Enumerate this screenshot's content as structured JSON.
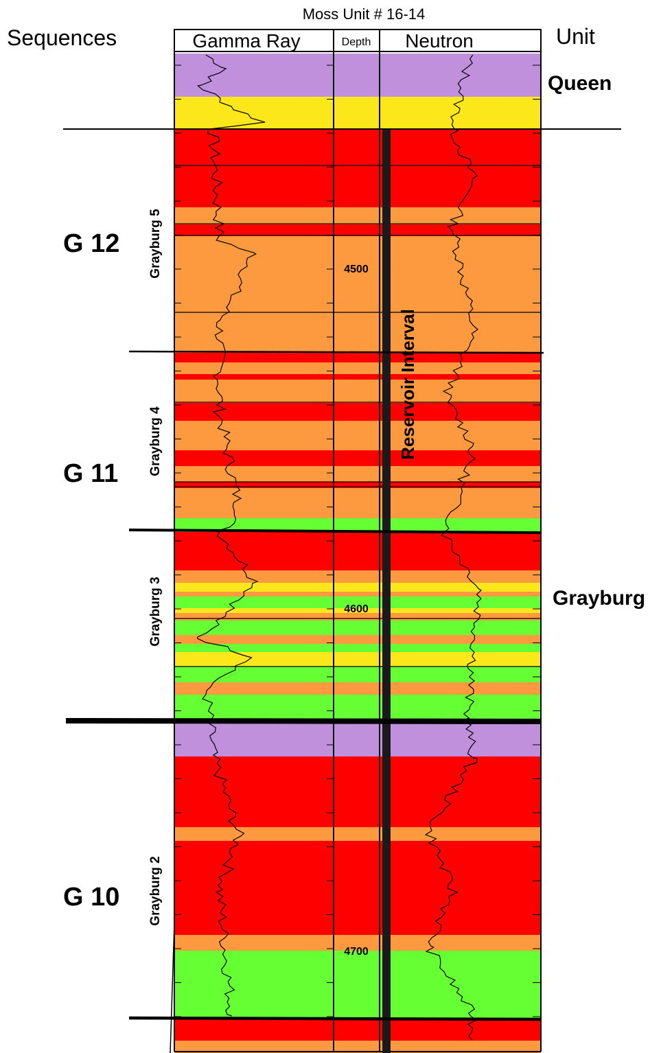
{
  "title": "Moss Unit # 16-14",
  "headers": {
    "sequences": "Sequences",
    "gamma_ray": "Gamma Ray",
    "depth": "Depth",
    "neutron": "Neutron",
    "unit": "Unit"
  },
  "sequences": [
    {
      "label": "G 12"
    },
    {
      "label": "G 11"
    },
    {
      "label": "G 10"
    }
  ],
  "parasequences": [
    {
      "label": "Grayburg 5"
    },
    {
      "label": "Grayburg 4"
    },
    {
      "label": "Grayburg 3"
    },
    {
      "label": "Grayburg 2"
    }
  ],
  "units": [
    {
      "label": "Queen"
    },
    {
      "label": "Grayburg"
    }
  ],
  "depth_labels": [
    {
      "value": "4500"
    },
    {
      "value": "4600"
    },
    {
      "value": "4700"
    }
  ],
  "reservoir_label": "Reservoir Interval",
  "facies_colors": {
    "purple": "#c090dd",
    "yellow": "#fce71a",
    "red": "#ff0000",
    "orange": "#fd9a40",
    "green": "#66ff33"
  }
}
